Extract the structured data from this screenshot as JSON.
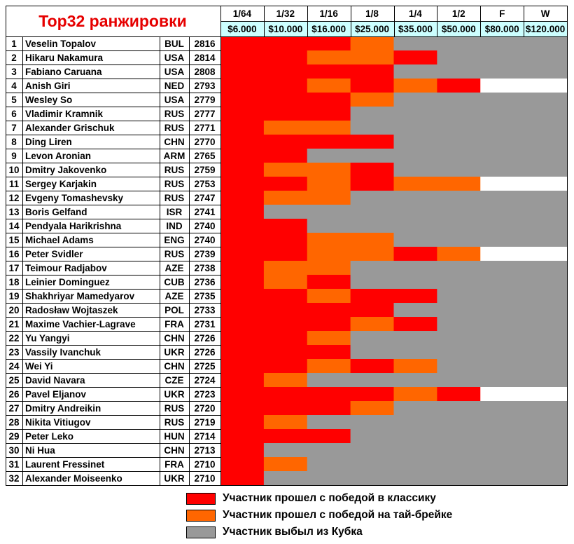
{
  "title": "Top32 ранжировки",
  "rounds": [
    "1/64",
    "1/32",
    "1/16",
    "1/8",
    "1/4",
    "1/2",
    "F",
    "W"
  ],
  "prizes": [
    "$6.000",
    "$10.000",
    "$16.000",
    "$25.000",
    "$35.000",
    "$50.000",
    "$80.000",
    "$120.000"
  ],
  "colors": {
    "classic": "#ff0000",
    "tiebreak": "#ff6600",
    "out": "#999999",
    "none": "#ffffff",
    "prize_bg": "#ccffff"
  },
  "players": [
    {
      "rank": "1",
      "name": "Veselin Topalov",
      "country": "BUL",
      "rating": "2816",
      "results": "RRRTOOOO"
    },
    {
      "rank": "2",
      "name": "Hikaru Nakamura",
      "country": "USA",
      "rating": "2814",
      "results": "RRTTROOO"
    },
    {
      "rank": "3",
      "name": "Fabiano Caruana",
      "country": "USA",
      "rating": "2808",
      "results": "RRRROOOO"
    },
    {
      "rank": "4",
      "name": "Anish Giri",
      "country": "NED",
      "rating": "2793",
      "results": "RRTRTRNN"
    },
    {
      "rank": "5",
      "name": "Wesley So",
      "country": "USA",
      "rating": "2779",
      "results": "RRRTOOOO"
    },
    {
      "rank": "6",
      "name": "Vladimir Kramnik",
      "country": "RUS",
      "rating": "2777",
      "results": "RRROOOOO"
    },
    {
      "rank": "7",
      "name": "Alexander Grischuk",
      "country": "RUS",
      "rating": "2771",
      "results": "RTTOOOOO"
    },
    {
      "rank": "8",
      "name": "Ding Liren",
      "country": "CHN",
      "rating": "2770",
      "results": "RRRROOOO"
    },
    {
      "rank": "9",
      "name": "Levon Aronian",
      "country": "ARM",
      "rating": "2765",
      "results": "RROOOOOO"
    },
    {
      "rank": "10",
      "name": "Dmitry Jakovenko",
      "country": "RUS",
      "rating": "2759",
      "results": "RTTROOOO"
    },
    {
      "rank": "11",
      "name": "Sergey Karjakin",
      "country": "RUS",
      "rating": "2753",
      "results": "RRTRTTNN"
    },
    {
      "rank": "12",
      "name": "Evgeny Tomashevsky",
      "country": "RUS",
      "rating": "2747",
      "results": "RTTOOOOO"
    },
    {
      "rank": "13",
      "name": "Boris Gelfand",
      "country": "ISR",
      "rating": "2741",
      "results": "ROOOOOOO"
    },
    {
      "rank": "14",
      "name": "Pendyala Harikrishna",
      "country": "IND",
      "rating": "2740",
      "results": "RROOOOOO"
    },
    {
      "rank": "15",
      "name": "Michael Adams",
      "country": "ENG",
      "rating": "2740",
      "results": "RRTTOOOO"
    },
    {
      "rank": "16",
      "name": "Peter Svidler",
      "country": "RUS",
      "rating": "2739",
      "results": "RRTTRTNN"
    },
    {
      "rank": "17",
      "name": "Teimour Radjabov",
      "country": "AZE",
      "rating": "2738",
      "results": "RTTOOOOO"
    },
    {
      "rank": "18",
      "name": "Leinier Dominguez",
      "country": "CUB",
      "rating": "2736",
      "results": "RTROOOOO"
    },
    {
      "rank": "19",
      "name": "Shakhriyar Mamedyarov",
      "country": "AZE",
      "rating": "2735",
      "results": "RRTRROOO"
    },
    {
      "rank": "20",
      "name": "Radosław Wojtaszek",
      "country": "POL",
      "rating": "2733",
      "results": "RRRROOOO"
    },
    {
      "rank": "21",
      "name": "Maxime Vachier-Lagrave",
      "country": "FRA",
      "rating": "2731",
      "results": "RRRTROOO"
    },
    {
      "rank": "22",
      "name": "Yu Yangyi",
      "country": "CHN",
      "rating": "2726",
      "results": "RRTOOOOO"
    },
    {
      "rank": "23",
      "name": "Vassily Ivanchuk",
      "country": "UKR",
      "rating": "2726",
      "results": "RRROOOOO"
    },
    {
      "rank": "24",
      "name": "Wei Yi",
      "country": "CHN",
      "rating": "2725",
      "results": "RRTRTOOO"
    },
    {
      "rank": "25",
      "name": "David Navara",
      "country": "CZE",
      "rating": "2724",
      "results": "RTOOOOOO"
    },
    {
      "rank": "26",
      "name": "Pavel Eljanov",
      "country": "UKR",
      "rating": "2723",
      "results": "RRRRTRNN"
    },
    {
      "rank": "27",
      "name": "Dmitry Andreikin",
      "country": "RUS",
      "rating": "2720",
      "results": "RRRTOOOO"
    },
    {
      "rank": "28",
      "name": "Nikita Vitiugov",
      "country": "RUS",
      "rating": "2719",
      "results": "RTOOOOOO"
    },
    {
      "rank": "29",
      "name": "Peter Leko",
      "country": "HUN",
      "rating": "2714",
      "results": "RRROOOOO"
    },
    {
      "rank": "30",
      "name": "Ni Hua",
      "country": "CHN",
      "rating": "2713",
      "results": "ROOOOOOO"
    },
    {
      "rank": "31",
      "name": "Laurent Fressinet",
      "country": "FRA",
      "rating": "2710",
      "results": "RTOOOOOO"
    },
    {
      "rank": "32",
      "name": "Alexander Moiseenko",
      "country": "UKR",
      "rating": "2710",
      "results": "ROOOOOOO"
    }
  ],
  "legend": [
    {
      "label": "Участник прошел с победой в классику",
      "color": "#ff0000"
    },
    {
      "label": "Участник прошел с победой на тай-брейке",
      "color": "#ff6600"
    },
    {
      "label": "Участник выбыл из Кубка",
      "color": "#999999"
    }
  ]
}
